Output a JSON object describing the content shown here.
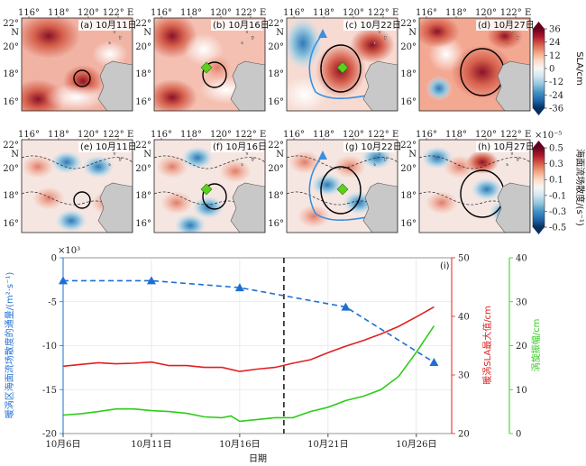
{
  "map_panels": {
    "lon_ticks": [
      "116°",
      "118°",
      "120°",
      "122° E"
    ],
    "lat_ticks": [
      "22°",
      "N",
      "20°",
      "18°",
      "16°"
    ],
    "row1": [
      {
        "label": "(a) 10月11日"
      },
      {
        "label": "(b) 10月16日"
      },
      {
        "label": "(c) 10月22日"
      },
      {
        "label": "(d) 10月27日"
      }
    ],
    "row2": [
      {
        "label": "(e) 10月11日"
      },
      {
        "label": "(f) 10月16日"
      },
      {
        "label": "(g) 10月22日"
      },
      {
        "label": "(h) 10月27日"
      }
    ],
    "colorbar_top": {
      "label": "SLA/cm",
      "ticks": [
        "36",
        "24",
        "12",
        "0",
        "-12",
        "-24",
        "-36"
      ],
      "colors": [
        "#67001f",
        "#b2182b",
        "#d6604d",
        "#f4a582",
        "#fddbc7",
        "#f7f7f7",
        "#d1e5f0",
        "#92c5de",
        "#4393c3",
        "#2166ac",
        "#053061"
      ]
    },
    "colorbar_bottom": {
      "label": "海面流场散度/(s⁻¹)",
      "exponent": "×10⁻⁵",
      "ticks": [
        "0.5",
        "0.3",
        "0.1",
        "-0.1",
        "-0.3",
        "-0.5"
      ],
      "colors": [
        "#67001f",
        "#b2182b",
        "#d6604d",
        "#f4a582",
        "#fddbc7",
        "#f7f7f7",
        "#d1e5f0",
        "#92c5de",
        "#4393c3",
        "#2166ac",
        "#053061"
      ]
    }
  },
  "chart_data": {
    "type": "line",
    "panel_label": "(i)",
    "xlabel": "日期",
    "x_ticks": [
      "10月6日",
      "10月11日",
      "10月16日",
      "10月21日",
      "10月26日"
    ],
    "x_day_start": 6,
    "x_day_end": 28,
    "vertical_line_day": 18.5,
    "axes": {
      "left": {
        "label": "暖涡区海面流场散度的通量/(m²·s⁻¹)",
        "exponent": "×10³",
        "ylim": [
          -20,
          0
        ],
        "ticks": [
          "0",
          "-5",
          "-10",
          "-15",
          "-20"
        ],
        "color": "#1f6fd1"
      },
      "right1": {
        "label": "暖涡SLA最大值/cm",
        "ylim": [
          20,
          50
        ],
        "ticks": [
          "20",
          "30",
          "40",
          "50"
        ],
        "color": "#e02020"
      },
      "right2": {
        "label": "涡旋振幅/cm",
        "ylim": [
          0,
          40
        ],
        "ticks": [
          "0",
          "10",
          "20",
          "30",
          "40"
        ],
        "color": "#2ecc1a"
      }
    },
    "series": [
      {
        "axis": "left",
        "style": "dashed-marker",
        "x": [
          6,
          11,
          16,
          22,
          27
        ],
        "y": [
          -2.6,
          -2.6,
          -3.4,
          -5.6,
          -11.9
        ]
      },
      {
        "axis": "right1",
        "style": "solid",
        "x": [
          6,
          7,
          8,
          9,
          10,
          11,
          12,
          13,
          14,
          15,
          16,
          17,
          18,
          19,
          20,
          21,
          22,
          23,
          24,
          25,
          26,
          27
        ],
        "y": [
          31.5,
          31.8,
          32.1,
          31.9,
          32.0,
          32.2,
          31.6,
          31.6,
          31.3,
          31.3,
          30.6,
          31.0,
          31.3,
          32.0,
          32.6,
          33.8,
          34.9,
          35.9,
          37.0,
          38.3,
          39.9,
          41.6
        ]
      },
      {
        "axis": "right2",
        "style": "solid",
        "x": [
          6,
          7,
          8,
          9,
          10,
          11,
          12,
          13,
          14,
          15,
          15.5,
          16,
          17,
          18,
          19,
          20,
          21,
          22,
          23,
          24,
          25,
          26,
          27
        ],
        "y": [
          4.2,
          4.5,
          5.0,
          5.6,
          5.6,
          5.2,
          5.0,
          4.6,
          3.8,
          3.6,
          4.0,
          2.8,
          3.2,
          3.6,
          3.6,
          5.0,
          6.0,
          7.5,
          8.5,
          10.0,
          13.0,
          18.5,
          24.5
        ]
      }
    ]
  }
}
